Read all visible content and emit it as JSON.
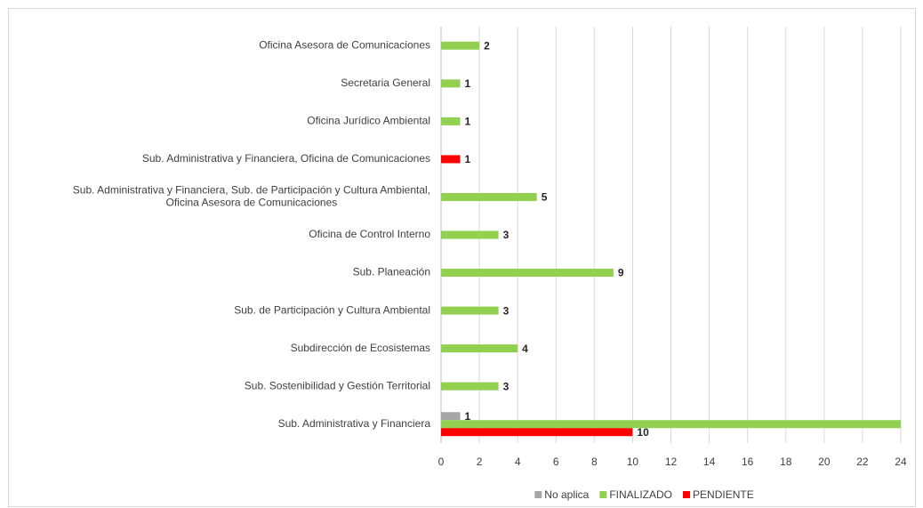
{
  "chart_data": {
    "type": "barh",
    "categories": [
      "Oficina Asesora de Comunicaciones",
      "Secretaria General",
      "Oficina Jurídico Ambiental",
      "Sub. Administrativa y Financiera, Oficina de Comunicaciones",
      [
        "Sub. Administrativa y Financiera, Sub. de Participación y Cultura Ambiental,",
        "Oficina Asesora de Comunicaciones"
      ],
      "Oficina de Control Interno",
      "Sub. Planeación",
      "Sub. de Participación y Cultura Ambiental",
      "Subdirección de Ecosistemas",
      "Sub. Sostenibilidad y Gestión Territorial",
      "Sub. Administrativa y Financiera"
    ],
    "series": [
      {
        "name": "No aplica",
        "color": "#a6a6a6",
        "values": [
          null,
          null,
          null,
          null,
          null,
          null,
          null,
          null,
          null,
          null,
          1
        ]
      },
      {
        "name": "FINALIZADO",
        "color": "#92d050",
        "values": [
          2,
          1,
          1,
          null,
          5,
          3,
          9,
          3,
          4,
          3,
          24
        ]
      },
      {
        "name": "PENDIENTE",
        "color": "#ff0000",
        "values": [
          null,
          null,
          null,
          1,
          null,
          null,
          null,
          null,
          null,
          null,
          10
        ]
      }
    ],
    "xlim": [
      0,
      24
    ],
    "xticks": [
      0,
      2,
      4,
      6,
      8,
      10,
      12,
      14,
      16,
      18,
      20,
      22,
      24
    ],
    "grid": true,
    "legend": "bottom"
  }
}
